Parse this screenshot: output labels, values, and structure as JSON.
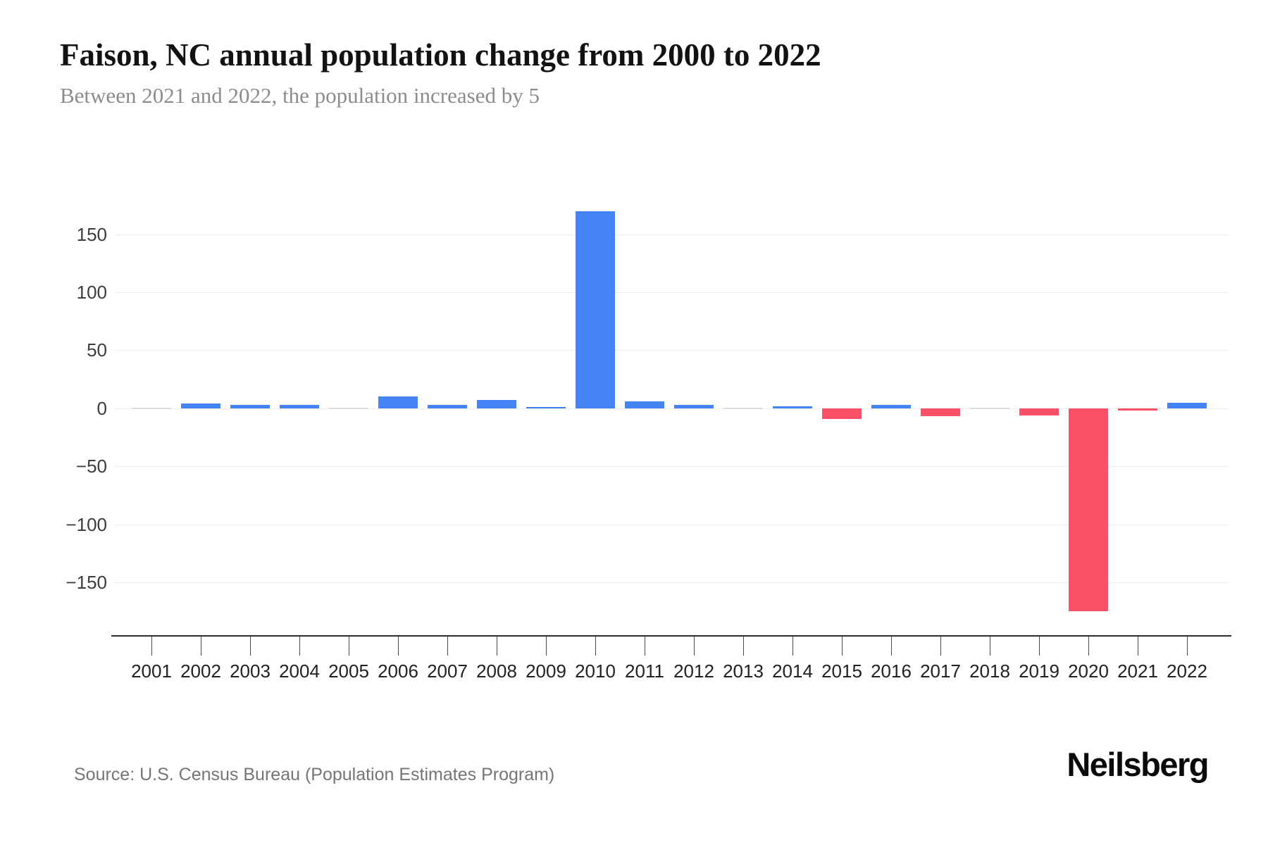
{
  "header": {
    "title": "Faison, NC annual population change from 2000 to 2022",
    "subtitle": "Between 2021 and 2022, the population increased by 5"
  },
  "footer": {
    "source": "Source: U.S. Census Bureau (Population Estimates Program)",
    "brand": "Neilsberg"
  },
  "chart_data": {
    "type": "bar",
    "title": "Faison, NC annual population change from 2000 to 2022",
    "subtitle": "Between 2021 and 2022, the population increased by 5",
    "categories": [
      "2001",
      "2002",
      "2003",
      "2004",
      "2005",
      "2006",
      "2007",
      "2008",
      "2009",
      "2010",
      "2011",
      "2012",
      "2013",
      "2014",
      "2015",
      "2016",
      "2017",
      "2018",
      "2019",
      "2020",
      "2021",
      "2022"
    ],
    "values": [
      0,
      4,
      3,
      3,
      0,
      10,
      3,
      7,
      1,
      170,
      6,
      3,
      0,
      2,
      -9,
      3,
      -7,
      0,
      -6,
      -175,
      -2,
      5
    ],
    "ylabel": "",
    "xlabel": "",
    "ylim": [
      -196,
      194
    ],
    "yticks": [
      150,
      100,
      50,
      0,
      -50,
      -100,
      -150
    ],
    "ytick_labels": [
      "150",
      "100",
      "50",
      "0",
      "−50",
      "−100",
      "−150"
    ],
    "grid": true,
    "legend": false,
    "positive_color": "#4484f4",
    "negative_color": "#fb5168",
    "zero_mark_color": "#dcdcdc",
    "gridline_color": "#ececec"
  }
}
